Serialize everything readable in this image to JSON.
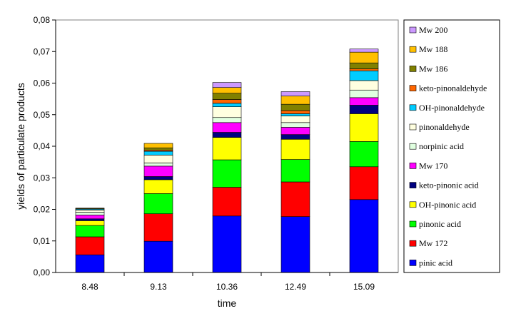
{
  "chart_data": {
    "type": "bar",
    "stacked": true,
    "xlabel": "time",
    "ylabel": "yields of particulate products",
    "ylim": [
      0,
      0.08
    ],
    "y_ticks": [
      "0,00",
      "0,01",
      "0,02",
      "0,03",
      "0,04",
      "0,05",
      "0,06",
      "0,07",
      "0,08"
    ],
    "categories": [
      "8.48",
      "9.13",
      "10.36",
      "12.49",
      "15.09"
    ],
    "legend_position": "right",
    "grid": false,
    "series": [
      {
        "name": "pinic acid",
        "color": "#0000ff",
        "values": [
          0.0056,
          0.0099,
          0.0179,
          0.0177,
          0.0231
        ]
      },
      {
        "name": "Mw 172",
        "color": "#ff0000",
        "values": [
          0.0057,
          0.0087,
          0.0091,
          0.011,
          0.0104
        ]
      },
      {
        "name": "pinonic acid",
        "color": "#00ff00",
        "values": [
          0.0036,
          0.0064,
          0.0087,
          0.0071,
          0.008
        ]
      },
      {
        "name": "OH-pinonic acid",
        "color": "#ffff00",
        "values": [
          0.0015,
          0.0044,
          0.0071,
          0.0064,
          0.0088
        ]
      },
      {
        "name": "keto-pinonic acid",
        "color": "#000080",
        "values": [
          0.0006,
          0.001,
          0.0016,
          0.0015,
          0.0027
        ]
      },
      {
        "name": "Mw 170",
        "color": "#ff00ff",
        "values": [
          0.0012,
          0.0033,
          0.0031,
          0.0023,
          0.0024
        ]
      },
      {
        "name": "norpinic acid",
        "color": "#e0ffe0",
        "values": [
          0.0009,
          0.001,
          0.0016,
          0.0015,
          0.0024
        ]
      },
      {
        "name": "pinonaldehyde",
        "color": "#ffffe0",
        "values": [
          0.0007,
          0.0025,
          0.0034,
          0.0021,
          0.003
        ]
      },
      {
        "name": "OH-pinonaldehyde",
        "color": "#00ccff",
        "values": [
          0.0003,
          0.0012,
          0.0011,
          0.0007,
          0.0031
        ]
      },
      {
        "name": "keto-pinonaldehyde",
        "color": "#ff6600",
        "values": [
          0.0001,
          0.0004,
          0.0012,
          0.001,
          0.0006
        ]
      },
      {
        "name": "Mw 186",
        "color": "#808000",
        "values": [
          0.0002,
          0.0007,
          0.002,
          0.002,
          0.0019
        ]
      },
      {
        "name": "Mw 188",
        "color": "#ffc000",
        "values": [
          0.0,
          0.0014,
          0.0018,
          0.0026,
          0.0034
        ]
      },
      {
        "name": "Mw 200",
        "color": "#cc99ff",
        "values": [
          0.0,
          0.0,
          0.0016,
          0.0014,
          0.001
        ]
      }
    ]
  }
}
